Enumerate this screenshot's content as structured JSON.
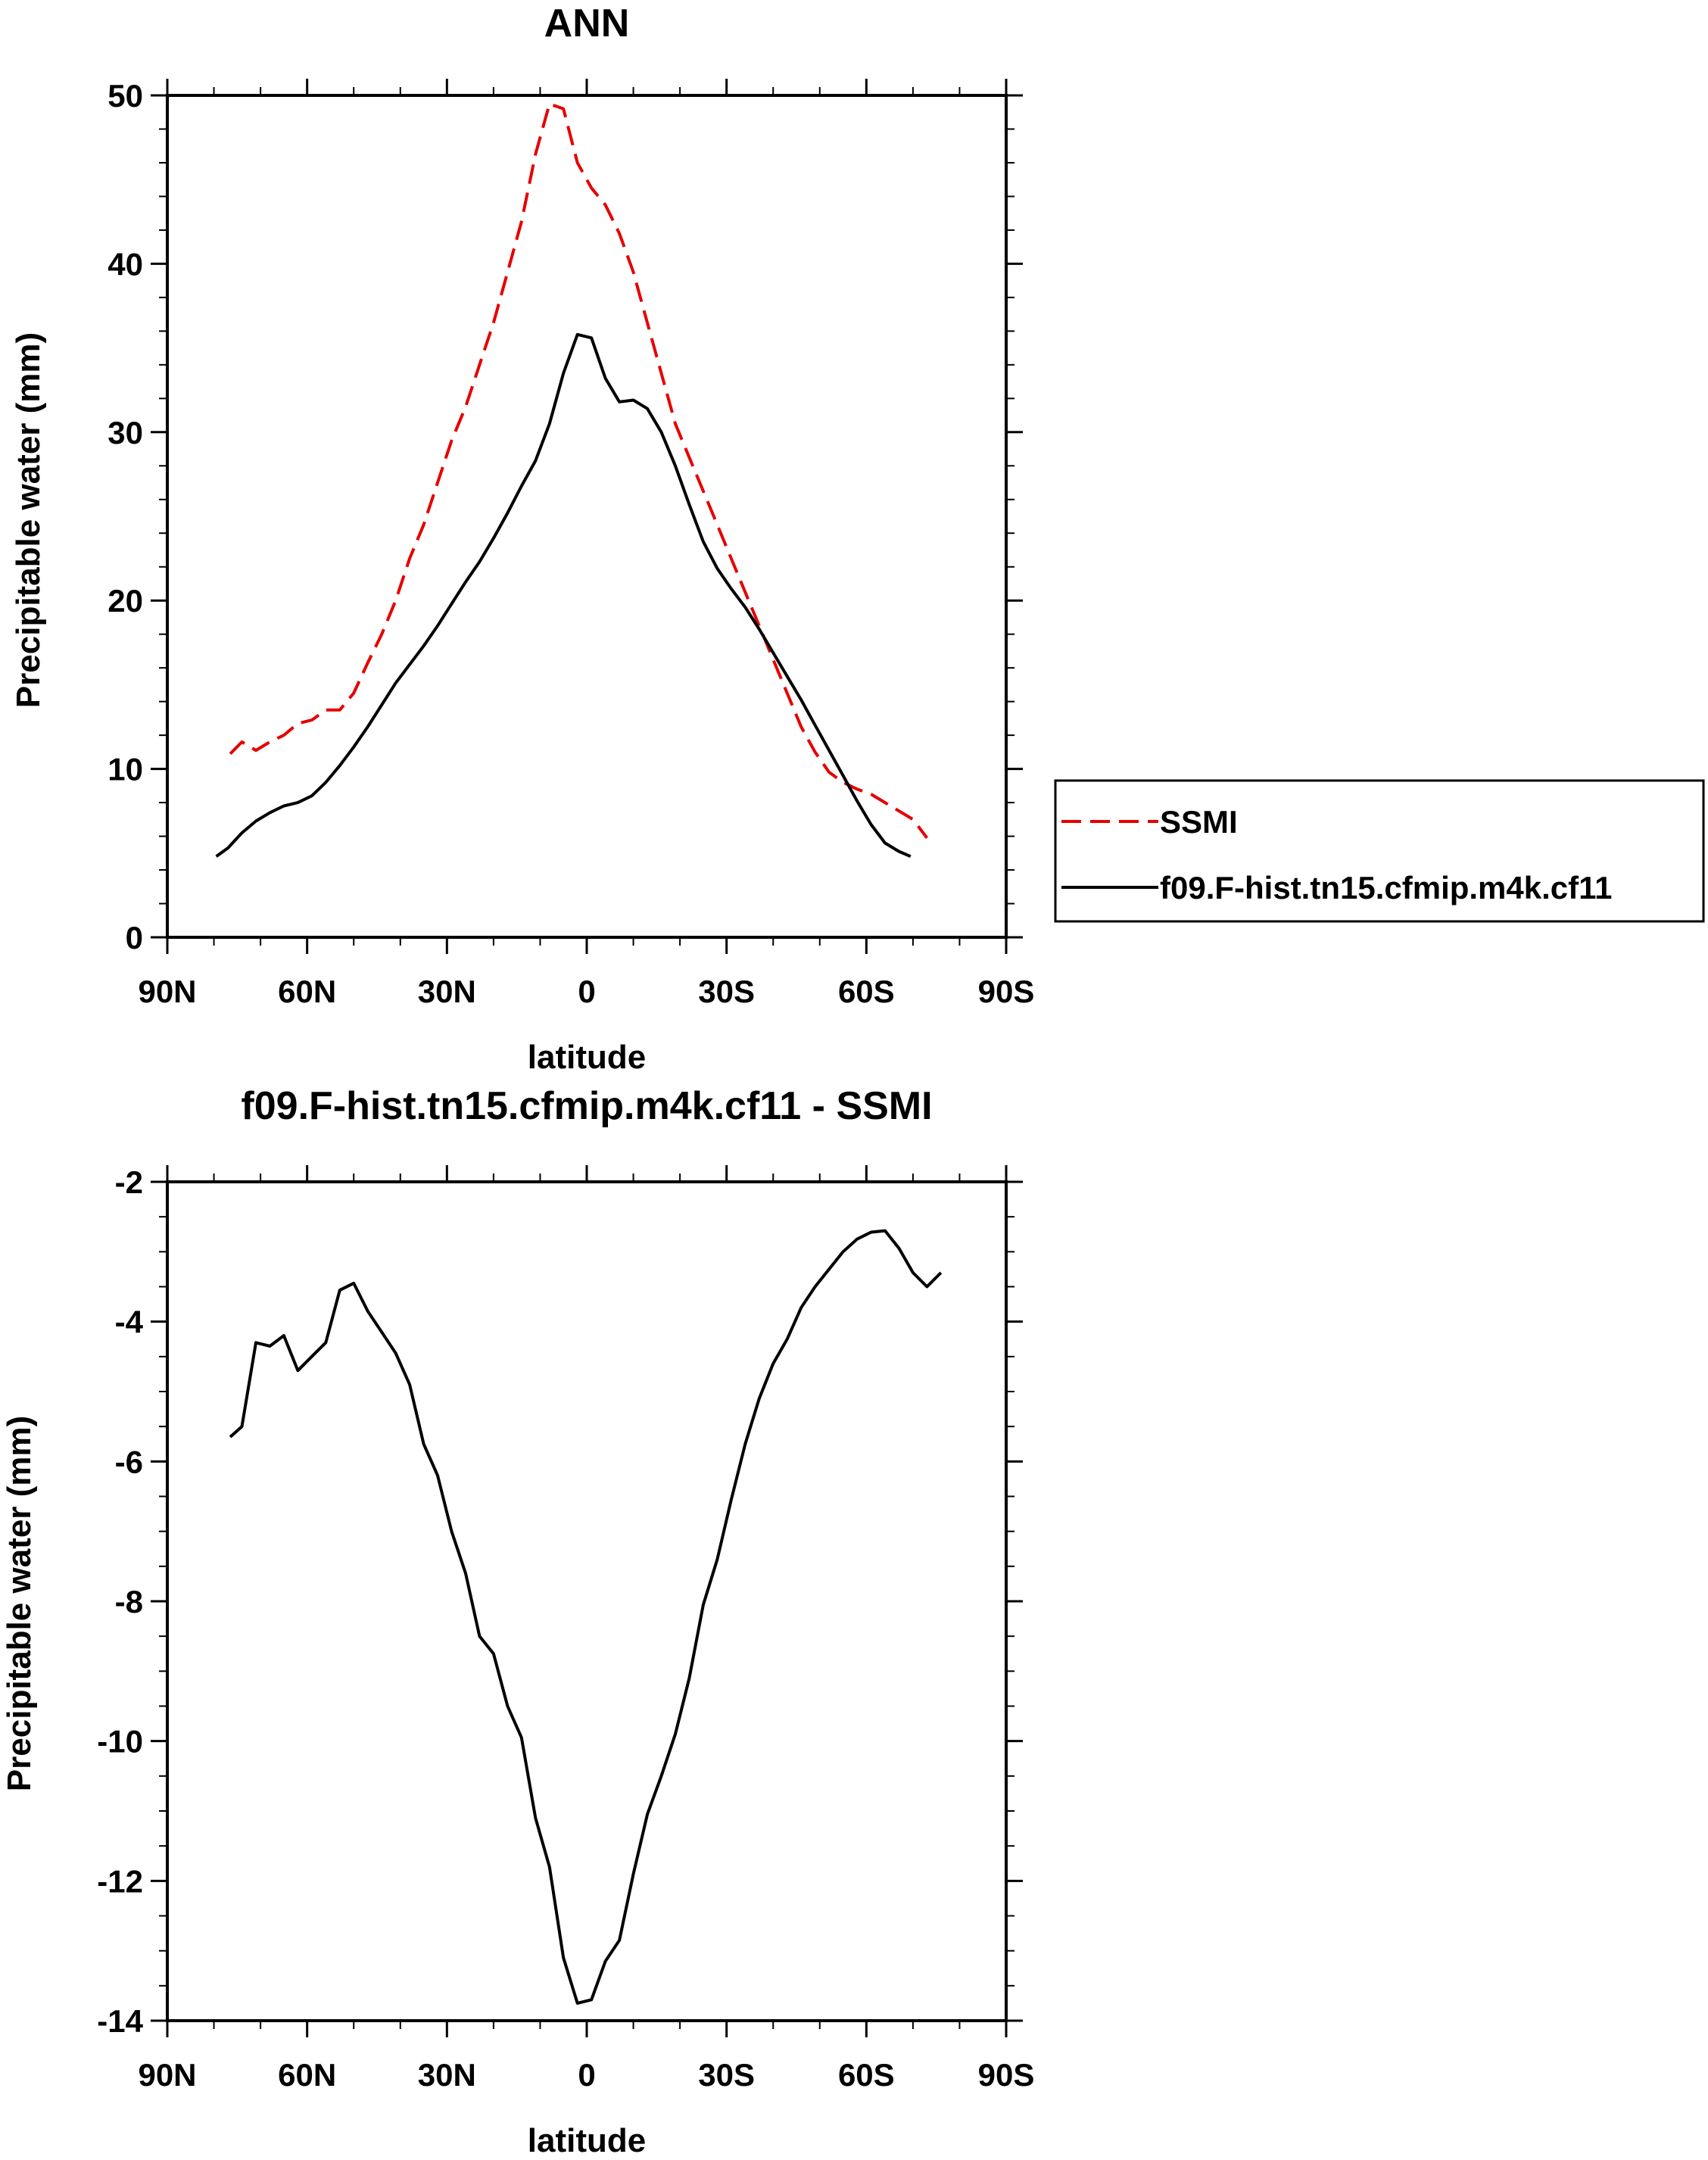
{
  "legend": {
    "entries": [
      {
        "label": "SSMI",
        "color": "#e60000",
        "dash": "dashed"
      },
      {
        "label": "f09.F-hist.tn15.cfmip.m4k.cf11",
        "color": "#000000",
        "dash": "solid"
      }
    ]
  },
  "chart_data": [
    {
      "type": "line",
      "title": "ANN",
      "xlabel": "latitude",
      "ylabel": "Precipitable water (mm)",
      "xlim": [
        90,
        -90
      ],
      "ylim": [
        0,
        50
      ],
      "xticks": [
        {
          "v": 90,
          "label": "90N"
        },
        {
          "v": 60,
          "label": "60N"
        },
        {
          "v": 30,
          "label": "30N"
        },
        {
          "v": 0,
          "label": "0"
        },
        {
          "v": -30,
          "label": "30S"
        },
        {
          "v": -60,
          "label": "60S"
        },
        {
          "v": -90,
          "label": "90S"
        }
      ],
      "yticks": [
        {
          "v": 0,
          "label": "0"
        },
        {
          "v": 10,
          "label": "10"
        },
        {
          "v": 20,
          "label": "20"
        },
        {
          "v": 30,
          "label": "30"
        },
        {
          "v": 40,
          "label": "40"
        },
        {
          "v": 50,
          "label": "50"
        }
      ],
      "series": [
        {
          "name": "SSMI",
          "color": "#e60000",
          "dash": "dashed",
          "points": [
            [
              76.5,
              10.9
            ],
            [
              74,
              11.6
            ],
            [
              71,
              11.1
            ],
            [
              68,
              11.6
            ],
            [
              65,
              12.0
            ],
            [
              62,
              12.7
            ],
            [
              59,
              12.9
            ],
            [
              56,
              13.5
            ],
            [
              53,
              13.5
            ],
            [
              50,
              14.5
            ],
            [
              47,
              16.3
            ],
            [
              44,
              18.0
            ],
            [
              41,
              20.0
            ],
            [
              38,
              22.5
            ],
            [
              35,
              24.5
            ],
            [
              32,
              27.0
            ],
            [
              29,
              29.5
            ],
            [
              26,
              31.5
            ],
            [
              23,
              34.0
            ],
            [
              20,
              36.5
            ],
            [
              17,
              39.5
            ],
            [
              14,
              42.5
            ],
            [
              11,
              46.5
            ],
            [
              8,
              49.5
            ],
            [
              5,
              49.2
            ],
            [
              2,
              46.0
            ],
            [
              -1,
              44.5
            ],
            [
              -4,
              43.5
            ],
            [
              -7,
              41.8
            ],
            [
              -10,
              39.5
            ],
            [
              -13,
              36.5
            ],
            [
              -16,
              33.5
            ],
            [
              -19,
              30.5
            ],
            [
              -22,
              28.5
            ],
            [
              -25,
              26.5
            ],
            [
              -28,
              24.5
            ],
            [
              -31,
              22.5
            ],
            [
              -34,
              20.5
            ],
            [
              -37,
              18.5
            ],
            [
              -40,
              16.5
            ],
            [
              -43,
              14.5
            ],
            [
              -46,
              12.5
            ],
            [
              -49,
              11.0
            ],
            [
              -52,
              9.8
            ],
            [
              -55,
              9.2
            ],
            [
              -58,
              8.8
            ],
            [
              -61,
              8.5
            ],
            [
              -64,
              8.0
            ],
            [
              -67,
              7.5
            ],
            [
              -70,
              7.0
            ],
            [
              -73,
              5.9
            ]
          ]
        },
        {
          "name": "f09.F-hist.tn15.cfmip.m4k.cf11",
          "color": "#000000",
          "dash": "solid",
          "points": [
            [
              79.5,
              4.8
            ],
            [
              77,
              5.3
            ],
            [
              74,
              6.2
            ],
            [
              71,
              6.9
            ],
            [
              68,
              7.4
            ],
            [
              65,
              7.8
            ],
            [
              62,
              8.0
            ],
            [
              59,
              8.4
            ],
            [
              56,
              9.2
            ],
            [
              53,
              10.2
            ],
            [
              50,
              11.3
            ],
            [
              47,
              12.5
            ],
            [
              44,
              13.8
            ],
            [
              41,
              15.1
            ],
            [
              38,
              16.2
            ],
            [
              35,
              17.3
            ],
            [
              32,
              18.5
            ],
            [
              29,
              19.8
            ],
            [
              26,
              21.1
            ],
            [
              23,
              22.3
            ],
            [
              20,
              23.7
            ],
            [
              17,
              25.2
            ],
            [
              14,
              26.8
            ],
            [
              11,
              28.3
            ],
            [
              8,
              30.5
            ],
            [
              5,
              33.5
            ],
            [
              2,
              35.8
            ],
            [
              -1,
              35.6
            ],
            [
              -4,
              33.2
            ],
            [
              -7,
              31.8
            ],
            [
              -10,
              31.9
            ],
            [
              -13,
              31.4
            ],
            [
              -16,
              30.0
            ],
            [
              -19,
              28.0
            ],
            [
              -22,
              25.7
            ],
            [
              -25,
              23.5
            ],
            [
              -28,
              21.9
            ],
            [
              -31,
              20.7
            ],
            [
              -34,
              19.6
            ],
            [
              -37,
              18.3
            ],
            [
              -40,
              16.9
            ],
            [
              -43,
              15.5
            ],
            [
              -46,
              14.1
            ],
            [
              -49,
              12.6
            ],
            [
              -52,
              11.1
            ],
            [
              -55,
              9.6
            ],
            [
              -58,
              8.1
            ],
            [
              -61,
              6.7
            ],
            [
              -64,
              5.6
            ],
            [
              -67,
              5.1
            ],
            [
              -69.5,
              4.8
            ]
          ]
        }
      ]
    },
    {
      "type": "line",
      "title": "f09.F-hist.tn15.cfmip.m4k.cf11 - SSMI",
      "xlabel": "latitude",
      "ylabel": "Precipitable water (mm)",
      "xlim": [
        90,
        -90
      ],
      "ylim": [
        -14,
        -2
      ],
      "xticks": [
        {
          "v": 90,
          "label": "90N"
        },
        {
          "v": 60,
          "label": "60N"
        },
        {
          "v": 30,
          "label": "30N"
        },
        {
          "v": 0,
          "label": "0"
        },
        {
          "v": -30,
          "label": "30S"
        },
        {
          "v": -60,
          "label": "60S"
        },
        {
          "v": -90,
          "label": "90S"
        }
      ],
      "yticks": [
        {
          "v": -14,
          "label": "-14"
        },
        {
          "v": -12,
          "label": "-12"
        },
        {
          "v": -10,
          "label": "-10"
        },
        {
          "v": -8,
          "label": "-8"
        },
        {
          "v": -6,
          "label": "-6"
        },
        {
          "v": -4,
          "label": "-4"
        },
        {
          "v": -2,
          "label": "-2"
        }
      ],
      "series": [
        {
          "color": "#000000",
          "dash": "solid",
          "points": [
            [
              76.5,
              -5.65
            ],
            [
              74,
              -5.5
            ],
            [
              71,
              -4.3
            ],
            [
              68,
              -4.35
            ],
            [
              65,
              -4.2
            ],
            [
              62,
              -4.7
            ],
            [
              59,
              -4.5
            ],
            [
              56,
              -4.3
            ],
            [
              53,
              -3.55
            ],
            [
              50,
              -3.45
            ],
            [
              47,
              -3.85
            ],
            [
              44,
              -4.15
            ],
            [
              41,
              -4.45
            ],
            [
              38,
              -4.9
            ],
            [
              35,
              -5.75
            ],
            [
              32,
              -6.2
            ],
            [
              29,
              -7.0
            ],
            [
              26,
              -7.6
            ],
            [
              23,
              -8.5
            ],
            [
              20,
              -8.75
            ],
            [
              17,
              -9.5
            ],
            [
              14,
              -9.95
            ],
            [
              11,
              -11.1
            ],
            [
              8,
              -11.8
            ],
            [
              5,
              -13.1
            ],
            [
              2,
              -13.75
            ],
            [
              -1,
              -13.7
            ],
            [
              -4,
              -13.15
            ],
            [
              -7,
              -12.85
            ],
            [
              -10,
              -11.9
            ],
            [
              -13,
              -11.05
            ],
            [
              -16,
              -10.5
            ],
            [
              -19,
              -9.9
            ],
            [
              -22,
              -9.1
            ],
            [
              -25,
              -8.05
            ],
            [
              -28,
              -7.4
            ],
            [
              -31,
              -6.55
            ],
            [
              -34,
              -5.75
            ],
            [
              -37,
              -5.1
            ],
            [
              -40,
              -4.6
            ],
            [
              -43,
              -4.25
            ],
            [
              -46,
              -3.8
            ],
            [
              -49,
              -3.5
            ],
            [
              -52,
              -3.25
            ],
            [
              -55,
              -3.0
            ],
            [
              -58,
              -2.82
            ],
            [
              -61,
              -2.72
            ],
            [
              -64,
              -2.7
            ],
            [
              -67,
              -2.95
            ],
            [
              -70,
              -3.3
            ],
            [
              -73,
              -3.5
            ],
            [
              -76,
              -3.3
            ]
          ]
        }
      ]
    }
  ]
}
